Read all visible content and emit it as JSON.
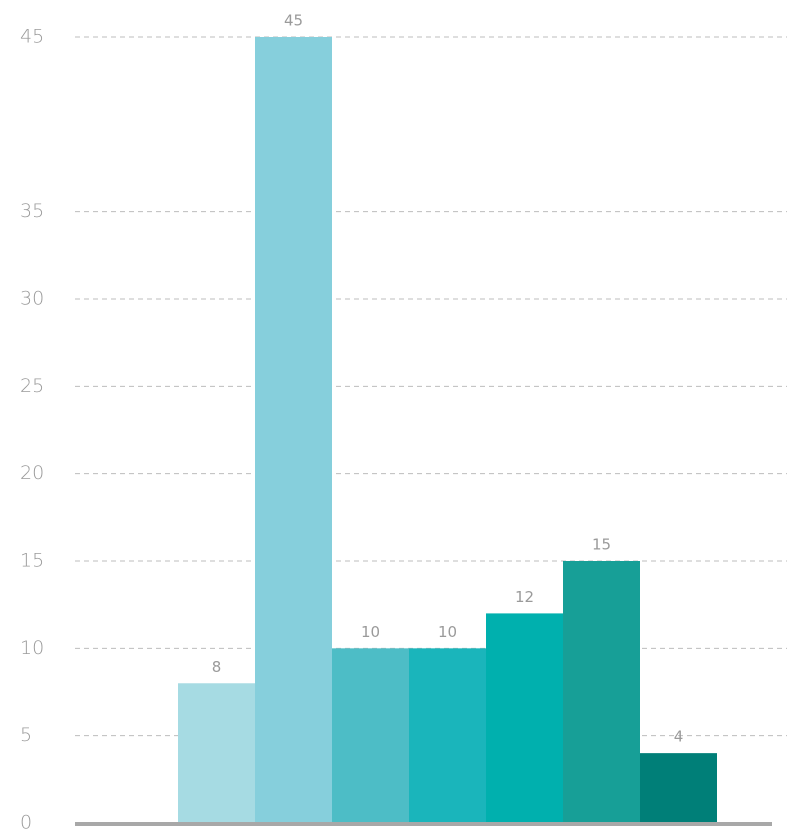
{
  "chart_data": {
    "type": "bar",
    "values": [
      8,
      45,
      10,
      10,
      12,
      15,
      4
    ],
    "colors": [
      "#a6dbe3",
      "#86cfdc",
      "#4dbdc6",
      "#1ab5bb",
      "#00b0ae",
      "#179f97",
      "#007f78"
    ],
    "ylim": [
      0,
      45
    ],
    "yticks": [
      0,
      5,
      10,
      15,
      20,
      25,
      30,
      35,
      45
    ],
    "grid": true
  }
}
